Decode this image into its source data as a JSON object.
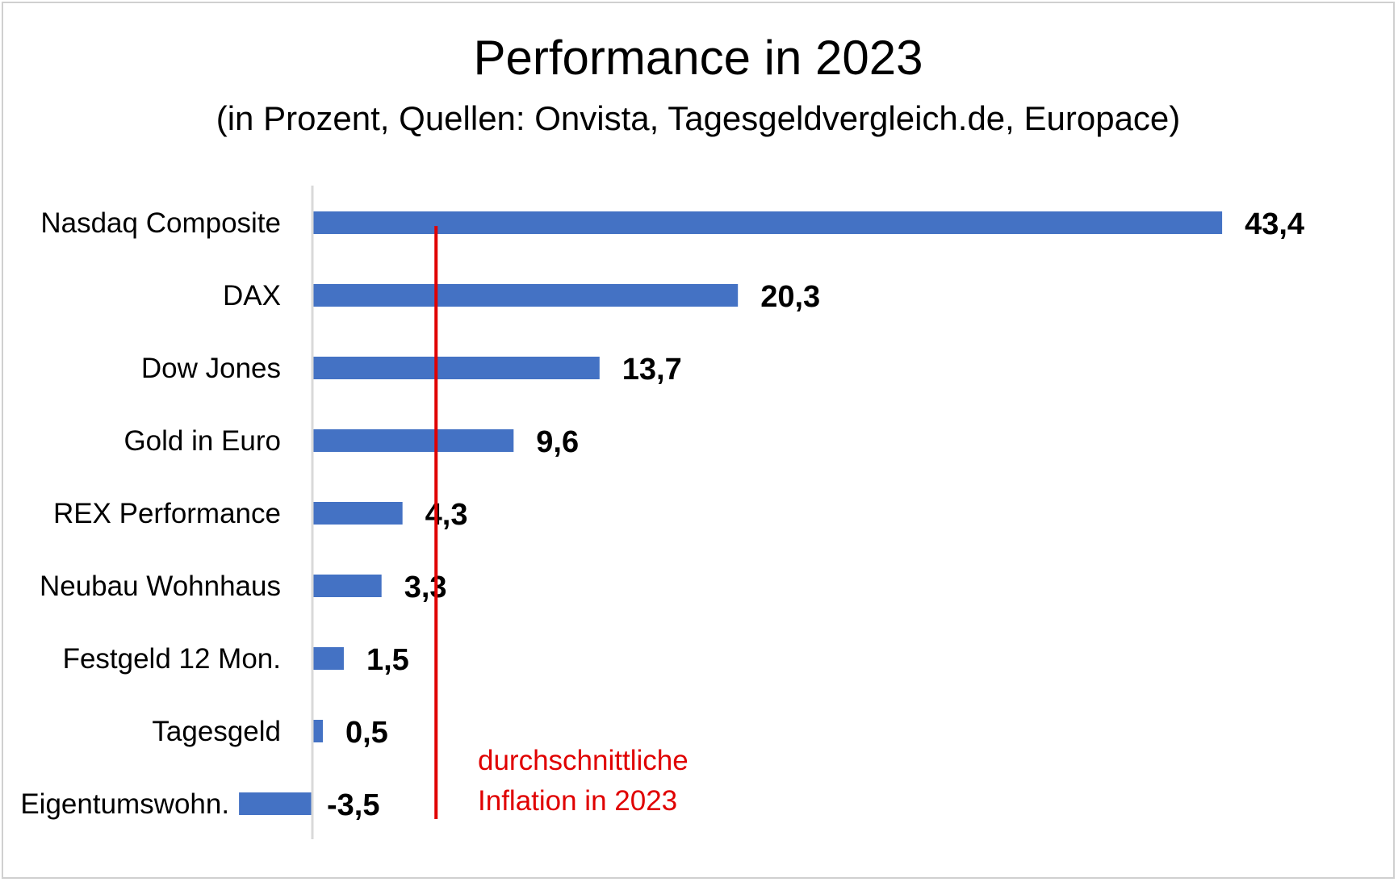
{
  "chart_data": {
    "type": "bar",
    "orientation": "horizontal",
    "title": "Performance in 2023",
    "subtitle": "(in Prozent, Quellen: Onvista, Tagesgeldvergleich.de, Europace)",
    "categories": [
      "Nasdaq Composite",
      "DAX",
      "Dow Jones",
      "Gold in Euro",
      "REX Performance",
      "Neubau Wohnhaus",
      "Festgeld 12 Mon.",
      "Tagesgeld",
      "Eigentumswohn."
    ],
    "values": [
      43.4,
      20.3,
      13.7,
      9.6,
      4.3,
      3.3,
      1.5,
      0.5,
      -3.5
    ],
    "value_labels": [
      "43,4",
      "20,3",
      "13,7",
      "9,6",
      "4,3",
      "3,3",
      "1,5",
      "0,5",
      "-3,5"
    ],
    "xlim": [
      -3.5,
      43.4
    ],
    "reference_line": {
      "value": 5.9,
      "label_lines": [
        "durchschnittliche",
        "Inflation in 2023"
      ],
      "color": "#e00000"
    },
    "bar_color": "#4472c4",
    "axis_color": "#d9d9d9",
    "legend": "none",
    "grid": false
  }
}
